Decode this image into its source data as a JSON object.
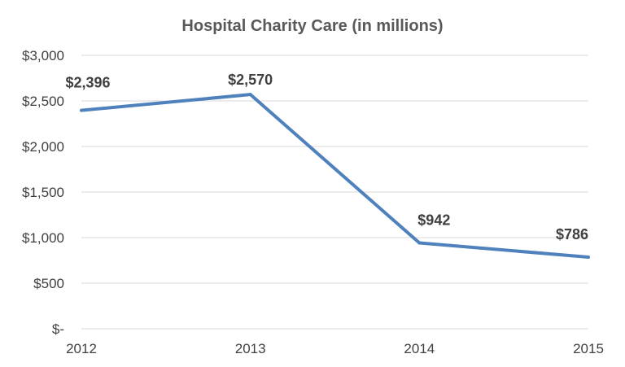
{
  "chart_data": {
    "type": "line",
    "title": "Hospital Charity Care (in millions)",
    "xlabel": "",
    "ylabel": "",
    "categories": [
      "2012",
      "2013",
      "2014",
      "2015"
    ],
    "series": [
      {
        "values": [
          2396,
          2570,
          942,
          786
        ],
        "color": "#4f81bd"
      }
    ],
    "data_labels": [
      "$2,396",
      "$2,570",
      "$942",
      "$786"
    ],
    "ylim": [
      0,
      3000
    ],
    "y_ticks": [
      0,
      500,
      1000,
      1500,
      2000,
      2500,
      3000
    ],
    "y_tick_labels": [
      "$-",
      "$500",
      "$1,000",
      "$1,500",
      "$2,000",
      "$2,500",
      "$3,000"
    ],
    "grid": true,
    "legend": "none"
  }
}
